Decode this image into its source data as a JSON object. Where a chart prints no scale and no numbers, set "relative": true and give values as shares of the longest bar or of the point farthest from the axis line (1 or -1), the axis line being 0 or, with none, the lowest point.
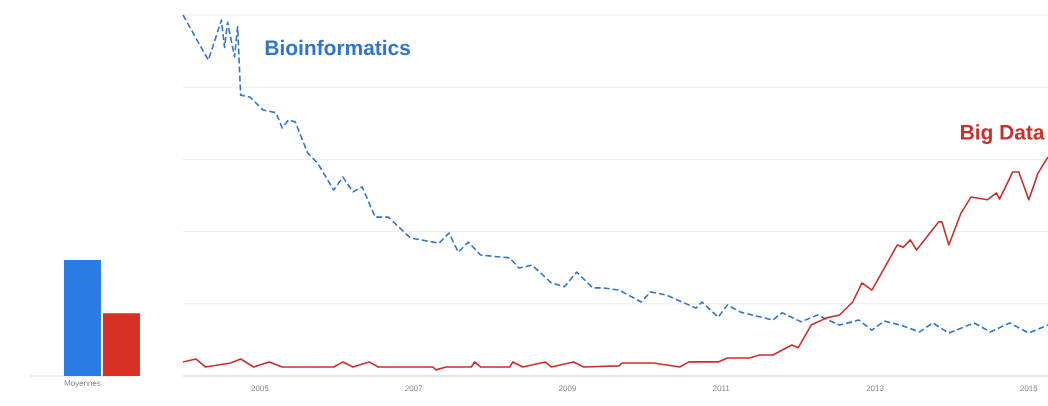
{
  "chart_data": [
    {
      "type": "bar",
      "relative": true,
      "xlabel": "Moyennes",
      "categories": [
        null,
        null
      ],
      "values": [
        1,
        0.54
      ],
      "colors": [
        "#2a7be4",
        "#d93025"
      ]
    },
    {
      "type": "line",
      "relative": true,
      "grid": "y",
      "xlim": [
        "2004-01-01",
        "2015-04-01"
      ],
      "xticks": [
        "2005",
        "2007",
        "2009",
        "2011",
        "2013",
        "2015"
      ],
      "series": [
        {
          "name": "Bioinformatics",
          "color": "#2f74d0",
          "line_style": "dashed",
          "x": [
            "2004-01-01",
            "2004-03-15",
            "2004-05-01",
            "2004-07-01",
            "2004-07-15",
            "2004-08-01",
            "2004-09-01",
            "2004-09-15",
            "2004-10-01",
            "2004-11-15",
            "2005-01-15",
            "2005-03-15",
            "2005-04-15",
            "2005-05-15",
            "2005-06-15",
            "2005-08-15",
            "2005-10-01",
            "2005-12-15",
            "2006-02-01",
            "2006-03-15",
            "2006-05-01",
            "2006-07-01",
            "2006-09-01",
            "2006-12-15",
            "2007-05-01",
            "2007-06-15",
            "2007-08-01",
            "2007-09-15",
            "2007-11-15",
            "2008-04-01",
            "2008-05-15",
            "2008-07-15",
            "2008-10-15",
            "2008-12-15",
            "2009-02-15",
            "2009-05-01",
            "2009-06-15",
            "2009-09-01",
            "2009-12-15",
            "2010-02-01",
            "2010-04-15",
            "2010-09-01",
            "2010-10-01",
            "2010-12-15",
            "2011-02-01",
            "2011-04-01",
            "2011-09-01",
            "2011-10-15",
            "2012-01-15",
            "2012-04-01",
            "2012-07-15",
            "2012-10-15",
            "2012-12-15",
            "2013-02-15",
            "2013-05-01",
            "2013-08-01",
            "2013-10-01",
            "2013-12-15",
            "2014-04-15",
            "2014-07-01",
            "2014-10-01",
            "2015-01-01",
            "2015-04-01"
          ],
          "values": [
            1,
            0.92,
            0.875,
            0.986,
            0.91,
            0.98,
            0.884,
            0.967,
            0.778,
            0.773,
            0.737,
            0.729,
            0.687,
            0.709,
            0.704,
            0.618,
            0.59,
            0.515,
            0.551,
            0.51,
            0.524,
            0.44,
            0.44,
            0.382,
            0.368,
            0.396,
            0.343,
            0.371,
            0.335,
            0.327,
            0.299,
            0.307,
            0.258,
            0.247,
            0.288,
            0.244,
            0.244,
            0.238,
            0.205,
            0.233,
            0.224,
            0.188,
            0.205,
            0.163,
            0.197,
            0.177,
            0.155,
            0.175,
            0.15,
            0.169,
            0.141,
            0.155,
            0.127,
            0.152,
            0.141,
            0.122,
            0.147,
            0.119,
            0.147,
            0.122,
            0.147,
            0.119,
            0.141
          ]
        },
        {
          "name": "Big Data",
          "color": "#c8302c",
          "line_style": "solid",
          "x": [
            "2004-01-01",
            "2004-03-01",
            "2004-04-15",
            "2004-08-15",
            "2004-10-01",
            "2004-12-01",
            "2005-02-15",
            "2005-04-15",
            "2005-12-15",
            "2006-02-01",
            "2006-03-15",
            "2006-06-01",
            "2006-07-15",
            "2007-04-01",
            "2007-04-15",
            "2007-06-01",
            "2007-10-01",
            "2007-10-15",
            "2007-11-15",
            "2008-04-01",
            "2008-04-15",
            "2008-06-01",
            "2008-09-15",
            "2008-10-15",
            "2009-02-01",
            "2009-03-15",
            "2009-09-01",
            "2009-09-15",
            "2010-02-15",
            "2010-06-15",
            "2010-08-01",
            "2010-12-15",
            "2011-02-01",
            "2011-05-15",
            "2011-07-01",
            "2011-09-01",
            "2011-12-01",
            "2012-01-01",
            "2012-03-01",
            "2012-05-15",
            "2012-07-15",
            "2012-09-15",
            "2012-11-01",
            "2012-12-15",
            "2013-04-15",
            "2013-05-15",
            "2013-06-15",
            "2013-07-15",
            "2013-11-01",
            "2013-11-15",
            "2013-12-15",
            "2014-02-15",
            "2014-04-01",
            "2014-06-15",
            "2014-08-01",
            "2014-08-15",
            "2014-10-15",
            "2014-11-15",
            "2015-01-01",
            "2015-02-15",
            "2015-04-01"
          ],
          "values": [
            0.039,
            0.047,
            0.025,
            0.036,
            0.047,
            0.025,
            0.039,
            0.025,
            0.025,
            0.039,
            0.025,
            0.039,
            0.025,
            0.025,
            0.017,
            0.025,
            0.025,
            0.039,
            0.025,
            0.025,
            0.039,
            0.025,
            0.039,
            0.025,
            0.039,
            0.025,
            0.028,
            0.036,
            0.036,
            0.025,
            0.039,
            0.039,
            0.05,
            0.05,
            0.058,
            0.058,
            0.086,
            0.078,
            0.141,
            0.161,
            0.169,
            0.205,
            0.258,
            0.238,
            0.363,
            0.357,
            0.377,
            0.349,
            0.427,
            0.427,
            0.363,
            0.452,
            0.496,
            0.488,
            0.507,
            0.49,
            0.565,
            0.565,
            0.488,
            0.562,
            0.607
          ]
        }
      ]
    }
  ]
}
